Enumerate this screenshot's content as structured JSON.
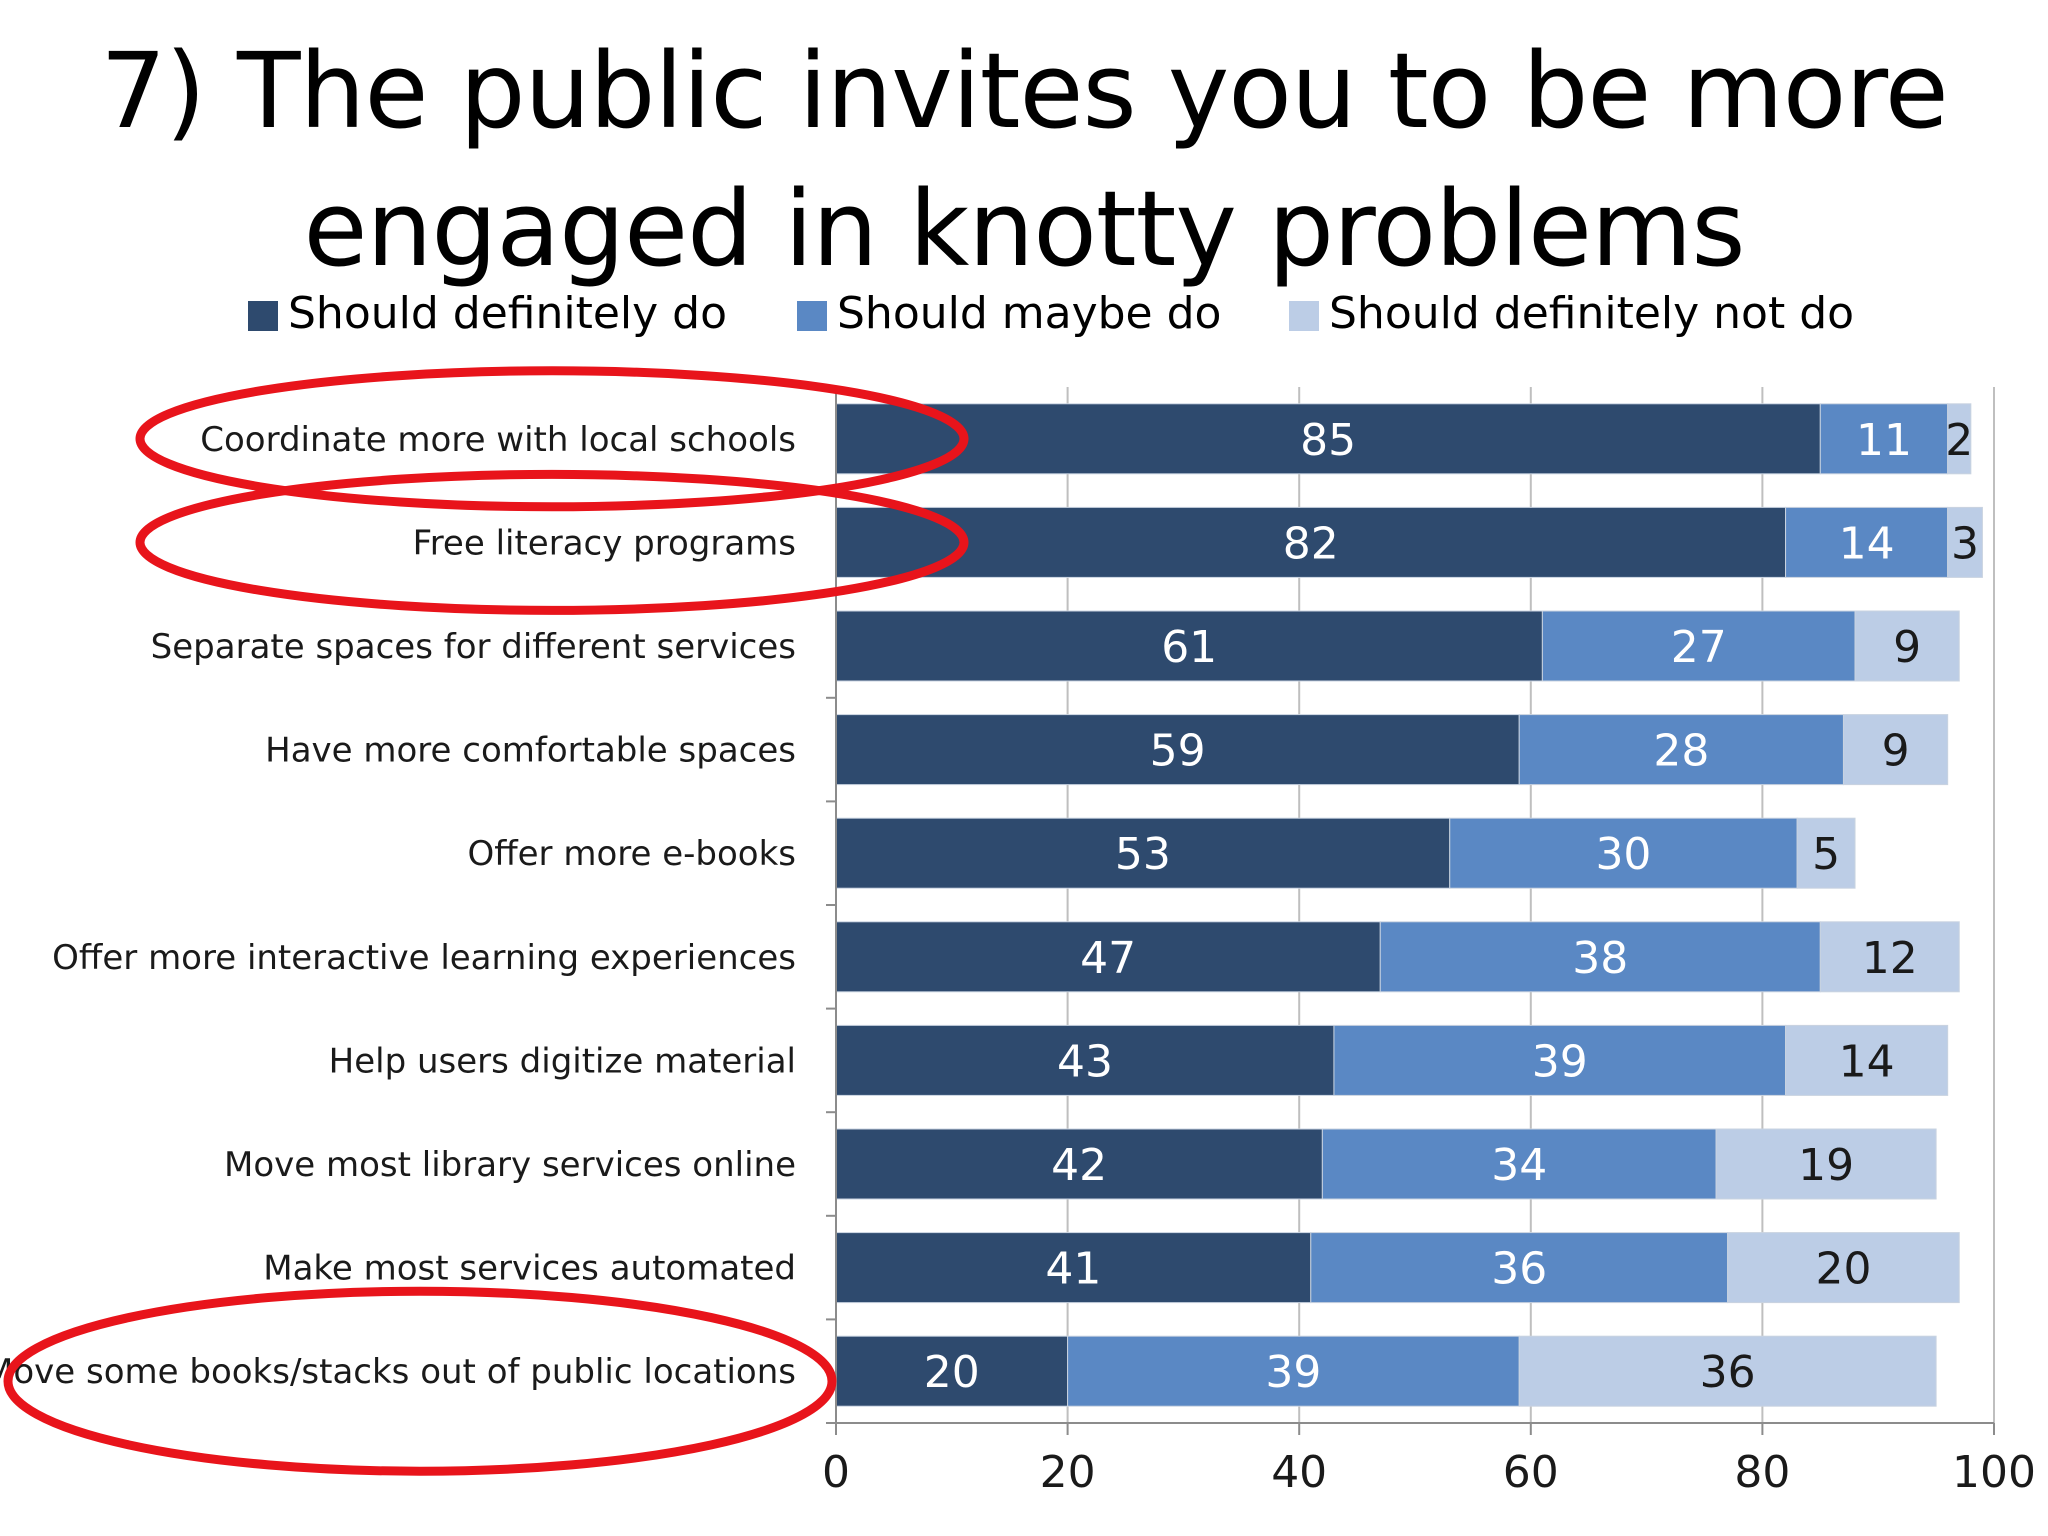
{
  "slide": {
    "title_lines": [
      "7) The public invites you to be more",
      "engaged in knotty problems"
    ]
  },
  "colors": {
    "should_definitely_do": "#2e4a6e",
    "should_maybe_do": "#5a88c4",
    "should_definitely_not_do": "#bccde6",
    "highlight_ellipse": "#e8141b",
    "gridline": "#bfbfbf"
  },
  "chart_data": {
    "type": "bar",
    "orientation": "horizontal",
    "stacked": true,
    "categories": [
      "Coordinate more with local schools",
      "Free literacy programs",
      "Separate spaces for different services",
      "Have more comfortable spaces",
      "Offer more e-books",
      "Offer more interactive learning experiences",
      "Help users digitize material",
      "Move most library services online",
      "Make most services automated",
      "Move some books/stacks out of public locations"
    ],
    "series": [
      {
        "name": "Should definitely do",
        "values": [
          85,
          82,
          61,
          59,
          53,
          47,
          43,
          42,
          41,
          20
        ]
      },
      {
        "name": "Should maybe do",
        "values": [
          11,
          14,
          27,
          28,
          30,
          38,
          39,
          34,
          36,
          39
        ]
      },
      {
        "name": "Should definitely not do",
        "values": [
          2,
          3,
          9,
          9,
          5,
          12,
          14,
          19,
          20,
          36
        ]
      }
    ],
    "xlim": [
      0,
      100
    ],
    "xticks": [
      0,
      20,
      40,
      60,
      80,
      100
    ],
    "grid": true,
    "legend": "top",
    "highlighted_categories": [
      "Coordinate more with local schools",
      "Free literacy programs",
      "Move some books/stacks out of public locations"
    ]
  }
}
